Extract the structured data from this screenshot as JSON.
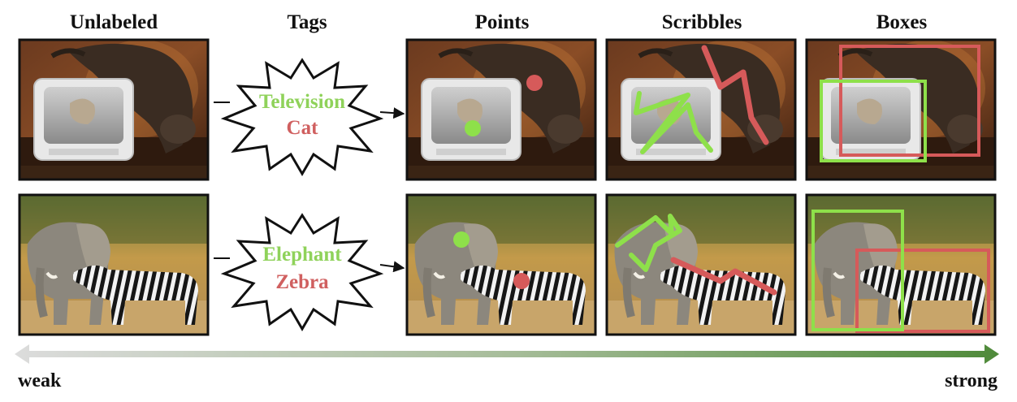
{
  "headers": {
    "unlabeled": "Unlabeled",
    "tags": "Tags",
    "points": "Points",
    "scribbles": "Scribbles",
    "boxes": "Boxes"
  },
  "rows": [
    {
      "subject": "cat-and-television",
      "tags": [
        "Television",
        "Cat"
      ]
    },
    {
      "subject": "elephant-and-zebra",
      "tags": [
        "Elephant",
        "Zebra"
      ]
    }
  ],
  "scale": {
    "left_label": "weak",
    "right_label": "strong"
  },
  "colors": {
    "annotation_green": "#8ee04a",
    "annotation_red": "#d65a5a",
    "tag_green": "#8fd25a",
    "tag_red": "#d06060",
    "arrow_start": "#d9d9d9",
    "arrow_end": "#4f8a3a"
  }
}
